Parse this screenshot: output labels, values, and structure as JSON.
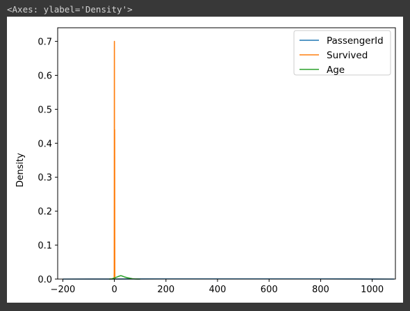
{
  "output_text": "<Axes: ylabel='Density'>",
  "chart_data": {
    "type": "line",
    "title": "",
    "xlabel": "",
    "ylabel": "Density",
    "xlim": [
      -220,
      1090
    ],
    "ylim": [
      0,
      0.74
    ],
    "xticks": [
      -200,
      0,
      200,
      400,
      600,
      800,
      1000
    ],
    "yticks": [
      0.0,
      0.1,
      0.2,
      0.3,
      0.4,
      0.5,
      0.6,
      0.7
    ],
    "legend_position": "top-right",
    "grid": false,
    "series": [
      {
        "name": "PassengerId",
        "color": "#1f77b4",
        "x": [
          -200,
          0,
          100,
          200,
          300,
          400,
          500,
          600,
          700,
          800,
          900,
          1000,
          1085
        ],
        "y": [
          0.0,
          0.0001,
          0.0004,
          0.0005,
          0.0005,
          0.0005,
          0.0005,
          0.0005,
          0.0005,
          0.0005,
          0.0004,
          0.0002,
          0.0
        ]
      },
      {
        "name": "Survived",
        "color": "#ff7f0e",
        "x": [
          -1.0,
          -0.6,
          -0.3,
          -0.1,
          0.0,
          0.1,
          0.3,
          0.5,
          0.7,
          0.9,
          1.0,
          1.1,
          1.3,
          1.6,
          2.0
        ],
        "y": [
          0.0,
          0.02,
          0.3,
          0.62,
          0.7,
          0.62,
          0.25,
          0.18,
          0.26,
          0.4,
          0.44,
          0.4,
          0.18,
          0.02,
          0.0
        ]
      },
      {
        "name": "Age",
        "color": "#2ca02c",
        "x": [
          -20,
          -10,
          0,
          10,
          20,
          25,
          30,
          40,
          50,
          60,
          70,
          80,
          90,
          100
        ],
        "y": [
          0.0,
          0.0005,
          0.003,
          0.006,
          0.009,
          0.01,
          0.009,
          0.006,
          0.004,
          0.0025,
          0.001,
          0.0004,
          0.0001,
          0.0
        ]
      }
    ]
  }
}
